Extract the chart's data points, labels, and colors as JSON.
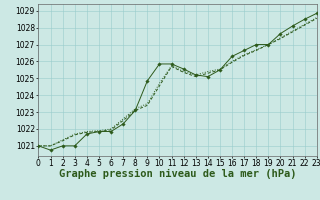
{
  "title": "Graphe pression niveau de la mer (hPa)",
  "x_labels": [
    "0",
    "1",
    "2",
    "3",
    "4",
    "5",
    "6",
    "7",
    "8",
    "9",
    "10",
    "11",
    "12",
    "13",
    "14",
    "15",
    "16",
    "17",
    "18",
    "19",
    "20",
    "21",
    "22",
    "23"
  ],
  "xlim": [
    0,
    23
  ],
  "ylim": [
    1020.4,
    1029.4
  ],
  "yticks": [
    1021,
    1022,
    1023,
    1024,
    1025,
    1026,
    1027,
    1028,
    1029
  ],
  "bg_color": "#cce8e4",
  "grid_color": "#99cccc",
  "line_color": "#2d5a1b",
  "line1_x": [
    0,
    1,
    2,
    3,
    4,
    5,
    6,
    7,
    8,
    9,
    10,
    11,
    12,
    13,
    14,
    15,
    16,
    17,
    18,
    19,
    20,
    21,
    22,
    23
  ],
  "line1_y": [
    1021.0,
    1020.75,
    1021.0,
    1021.0,
    1021.7,
    1021.85,
    1021.85,
    1022.3,
    1023.1,
    1024.85,
    1025.85,
    1025.85,
    1025.55,
    1025.2,
    1025.1,
    1025.5,
    1026.3,
    1026.65,
    1027.0,
    1027.0,
    1027.65,
    1028.1,
    1028.5,
    1028.85
  ],
  "line2_x": [
    0,
    1,
    2,
    3,
    4,
    5,
    6,
    7,
    8,
    9,
    10,
    11,
    12,
    13,
    14,
    15,
    16,
    17,
    18,
    19,
    20,
    21,
    22,
    23
  ],
  "line2_y": [
    1021.0,
    1021.0,
    1021.3,
    1021.65,
    1021.8,
    1021.85,
    1021.95,
    1022.5,
    1023.1,
    1023.4,
    1024.55,
    1025.7,
    1025.35,
    1025.1,
    1025.3,
    1025.5,
    1025.95,
    1026.35,
    1026.65,
    1027.0,
    1027.35,
    1027.75,
    1028.15,
    1028.55
  ],
  "line3_x": [
    0,
    1,
    2,
    3,
    4,
    5,
    6,
    7,
    8,
    9,
    10,
    11,
    12,
    13,
    14,
    15,
    16,
    17,
    18,
    19,
    20,
    21,
    22,
    23
  ],
  "line3_y": [
    1021.0,
    1021.0,
    1021.35,
    1021.7,
    1021.85,
    1021.9,
    1022.0,
    1022.6,
    1023.2,
    1023.5,
    1024.7,
    1025.75,
    1025.4,
    1025.2,
    1025.4,
    1025.55,
    1026.0,
    1026.4,
    1026.7,
    1027.0,
    1027.4,
    1027.8,
    1028.2,
    1028.6
  ],
  "xlabel_fontsize": 5.5,
  "ylabel_fontsize": 5.5,
  "title_fontsize": 7.5,
  "marker_size": 1.8,
  "line_width": 0.7
}
